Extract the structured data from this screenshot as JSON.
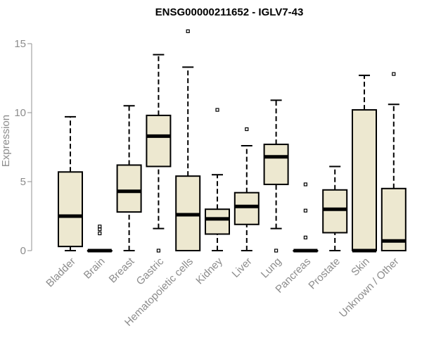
{
  "chart_data": {
    "type": "boxplot",
    "title": "ENSG00000211652 - IGLV7-43",
    "xlabel": "",
    "ylabel": "Expression",
    "ylim": [
      0,
      15.5
    ],
    "yticks": [
      "0",
      "5",
      "10",
      "15"
    ],
    "grid": false,
    "categories": [
      "Bladder",
      "Brain",
      "Breast",
      "Gastric",
      "Hematopoietic cells",
      "Kidney",
      "Liver",
      "Lung",
      "Pancreas",
      "Prostate",
      "Skin",
      "Unknown / Other"
    ],
    "boxes": [
      {
        "whisker_low": 0.0,
        "q1": 0.3,
        "median": 2.5,
        "q3": 5.7,
        "whisker_high": 9.7,
        "outliers": []
      },
      {
        "whisker_low": 0.0,
        "q1": 0.0,
        "median": 0.0,
        "q3": 0.0,
        "whisker_high": 0.0,
        "outliers": [
          1.25,
          1.55,
          1.75
        ]
      },
      {
        "whisker_low": 0.0,
        "q1": 2.8,
        "median": 4.3,
        "q3": 6.2,
        "whisker_high": 10.5,
        "outliers": []
      },
      {
        "whisker_low": 1.6,
        "q1": 6.1,
        "median": 8.3,
        "q3": 9.8,
        "whisker_high": 14.2,
        "outliers": [
          0.0
        ]
      },
      {
        "whisker_low": 0.0,
        "q1": 0.0,
        "median": 2.6,
        "q3": 5.4,
        "whisker_high": 13.3,
        "outliers": [
          15.9
        ]
      },
      {
        "whisker_low": 0.0,
        "q1": 1.2,
        "median": 2.3,
        "q3": 3.0,
        "whisker_high": 5.5,
        "outliers": [
          10.2
        ]
      },
      {
        "whisker_low": 0.0,
        "q1": 1.9,
        "median": 3.2,
        "q3": 4.2,
        "whisker_high": 7.6,
        "outliers": [
          8.8
        ]
      },
      {
        "whisker_low": 1.6,
        "q1": 4.8,
        "median": 6.8,
        "q3": 7.7,
        "whisker_high": 10.9,
        "outliers": [
          0.0
        ]
      },
      {
        "whisker_low": 0.0,
        "q1": 0.0,
        "median": 0.0,
        "q3": 0.0,
        "whisker_high": 0.0,
        "outliers": [
          0.95,
          2.9,
          4.8
        ]
      },
      {
        "whisker_low": 0.0,
        "q1": 1.3,
        "median": 3.0,
        "q3": 4.4,
        "whisker_high": 6.1,
        "outliers": []
      },
      {
        "whisker_low": 0.0,
        "q1": 0.0,
        "median": 0.0,
        "q3": 10.2,
        "whisker_high": 12.7,
        "outliers": []
      },
      {
        "whisker_low": 0.0,
        "q1": 0.0,
        "median": 0.7,
        "q3": 4.5,
        "whisker_high": 10.6,
        "outliers": [
          12.8
        ]
      }
    ],
    "colors": {
      "box_fill": "#ede8d0",
      "box_stroke": "#000000",
      "axis": "#909090",
      "tick_text": "#8c8c8c"
    }
  }
}
